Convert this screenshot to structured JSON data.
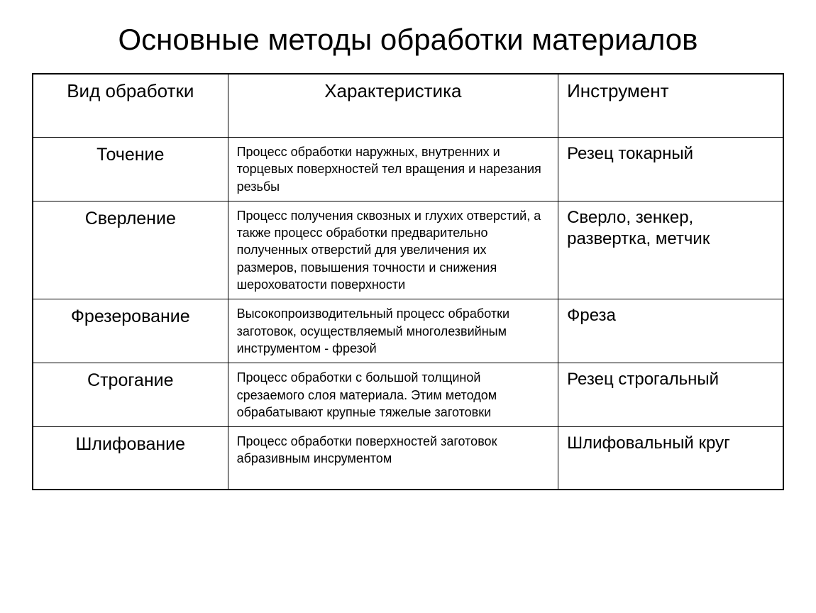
{
  "title": "Основные методы обработки материалов",
  "table": {
    "columns": [
      "Вид обработки",
      "Характеристика",
      "Инструмент"
    ],
    "rows": [
      {
        "type": "Точение",
        "desc": "Процесс обработки наружных, внутренних и торцевых поверхностей тел вращения и нарезания резьбы",
        "tool": "Резец токарный"
      },
      {
        "type": "Сверление",
        "desc": "Процесс получения сквозных и глухих отверстий, а также процесс обработки предварительно полученных отверстий для увеличения их размеров, повышения точности и снижения шероховатости поверхности",
        "tool": "Сверло, зенкер, развертка, метчик"
      },
      {
        "type": "Фрезерование",
        "desc": "Высокопроизводительный процесс обработки заготовок, осуществляемый многолезвийным инструментом - фрезой",
        "tool": "Фреза"
      },
      {
        "type": "Строгание",
        "desc": "Процесс обработки с большой толщиной срезаемого слоя материала. Этим методом обрабатывают крупные тяжелые заготовки",
        "tool": "Резец строгальный"
      },
      {
        "type": "Шлифование",
        "desc": "Процесс обработки поверхностей заготовок абразивным инсрументом",
        "tool": "Шлифовальный круг"
      }
    ],
    "styling": {
      "border_color": "#000000",
      "background_color": "#ffffff",
      "title_fontsize": 42,
      "header_fontsize": 26,
      "type_fontsize": 25,
      "desc_fontsize": 18,
      "tool_fontsize": 24,
      "col_widths_pct": [
        26,
        44,
        30
      ]
    }
  }
}
